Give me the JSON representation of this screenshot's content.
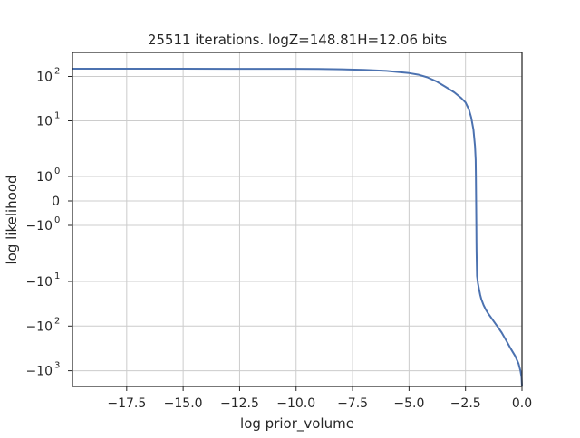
{
  "chart_data": {
    "type": "line",
    "title": "25511 iterations. logZ=148.81H=12.06 bits",
    "xlabel": "log prior_volume",
    "ylabel": "log likelihood",
    "xlim": [
      -19.9,
      0.0
    ],
    "yscale": "symlog",
    "ylim": [
      -3000,
      300
    ],
    "grid": true,
    "x_ticks": [
      {
        "value": -17.5,
        "label": "−17.5"
      },
      {
        "value": -15.0,
        "label": "−15.0"
      },
      {
        "value": -12.5,
        "label": "−12.5"
      },
      {
        "value": -10.0,
        "label": "−10.0"
      },
      {
        "value": -7.5,
        "label": "−7.5"
      },
      {
        "value": -5.0,
        "label": "−5.0"
      },
      {
        "value": -2.5,
        "label": "−2.5"
      },
      {
        "value": 0.0,
        "label": "0.0"
      }
    ],
    "y_ticks": [
      {
        "value": 100,
        "base": "10",
        "exp": "2",
        "sign": ""
      },
      {
        "value": 10,
        "base": "10",
        "exp": "1",
        "sign": ""
      },
      {
        "value": 1,
        "base": "10",
        "exp": "0",
        "sign": ""
      },
      {
        "value": 0,
        "base": "0",
        "exp": "",
        "sign": ""
      },
      {
        "value": -1,
        "base": "10",
        "exp": "0",
        "sign": "−"
      },
      {
        "value": -10,
        "base": "10",
        "exp": "1",
        "sign": "−"
      },
      {
        "value": -100,
        "base": "10",
        "exp": "2",
        "sign": "−"
      },
      {
        "value": -1000,
        "base": "10",
        "exp": "3",
        "sign": "−"
      }
    ],
    "series": [
      {
        "color": "#4c72b0",
        "x": [
          -20.0,
          -17.5,
          -15.0,
          -12.5,
          -10.0,
          -9.0,
          -8.0,
          -7.0,
          -6.0,
          -5.0,
          -4.6,
          -4.2,
          -3.8,
          -3.4,
          -3.0,
          -2.7,
          -2.5,
          -2.35,
          -2.25,
          -2.15,
          -2.08,
          -2.05,
          -2.04,
          -2.03,
          -2.02,
          -2.015,
          -2.01,
          -2.0,
          -1.99,
          -1.95,
          -1.9,
          -1.85,
          -1.8,
          -1.7,
          -1.6,
          -1.5,
          -1.3,
          -1.1,
          -0.9,
          -0.7,
          -0.5,
          -0.3,
          -0.15,
          -0.07,
          -0.02,
          0.0
        ],
        "y": [
          149,
          149,
          149,
          148.5,
          148,
          147,
          145,
          141,
          133,
          119,
          110,
          96,
          78,
          59,
          44,
          33,
          26,
          18,
          12,
          7,
          3.5,
          2,
          1,
          0,
          -1,
          -2,
          -3,
          -5,
          -8,
          -11,
          -15,
          -20,
          -25,
          -34,
          -43,
          -52,
          -72,
          -100,
          -140,
          -210,
          -320,
          -470,
          -700,
          -1000,
          -1400,
          -2300
        ]
      }
    ]
  }
}
